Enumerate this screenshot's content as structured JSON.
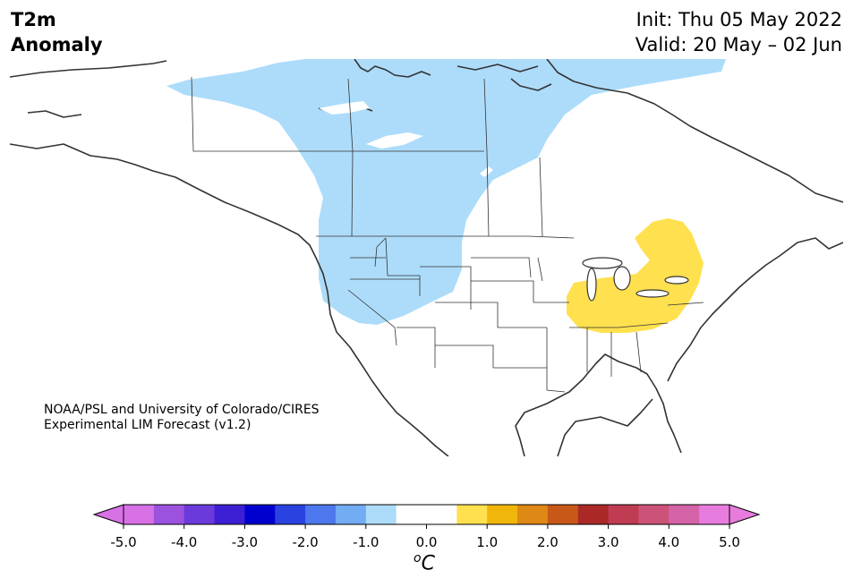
{
  "header": {
    "variable": "T2m",
    "subtitle": "Anomaly",
    "init": "Init: Thu 05 May 2022",
    "valid": "Valid: 20 May – 02 Jun"
  },
  "credit": {
    "line1": "NOAA/PSL and University of Colorado/CIRES",
    "line2": "Experimental LIM Forecast (v1.2)"
  },
  "map": {
    "region": "North America",
    "colors": {
      "cold_anomaly_fill": "#addcfa",
      "warm_anomaly_fill": "#ffe04f",
      "coastline": "#333333",
      "lake_fill": "#ffffff"
    },
    "anomaly_regions": [
      {
        "label": "cold",
        "bin": "-1.0 to -0.5",
        "area": "western/central Canada, Pacific Northwest"
      },
      {
        "label": "warm",
        "bin": "0.5 to 1.0",
        "area": "Ohio Valley, Great Lakes, Ontario"
      }
    ]
  },
  "colorbar": {
    "unit_symbol": "C",
    "unit_degree": "o",
    "ticks": [
      "-5.0",
      "-4.0",
      "-3.0",
      "-2.0",
      "-1.0",
      "0.0",
      "1.0",
      "2.0",
      "3.0",
      "4.0",
      "5.0"
    ],
    "colors": [
      "#d871e6",
      "#9b52df",
      "#6b3adb",
      "#3d1fd3",
      "#0000ce",
      "#2a42e0",
      "#4d77ec",
      "#72acf3",
      "#addcfa",
      "#ffffff",
      "#ffffff",
      "#ffe04f",
      "#f1b60b",
      "#de8816",
      "#c75818",
      "#aa2927",
      "#c03c52",
      "#cc5278",
      "#d563a8",
      "#e87cde"
    ],
    "extend_left_color": "#d871e6",
    "extend_right_color": "#e87cde"
  }
}
